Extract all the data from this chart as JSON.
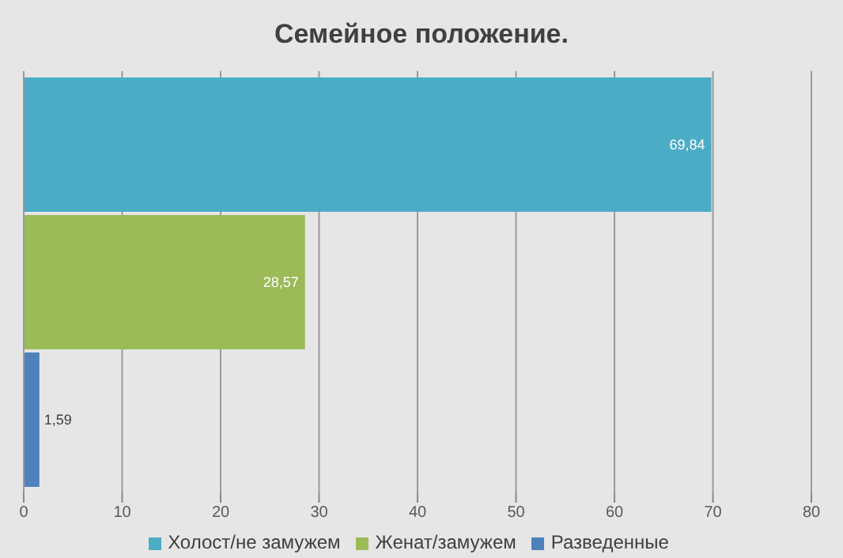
{
  "chart_data": {
    "type": "bar",
    "orientation": "horizontal",
    "title": "Семейное положение.",
    "categories": [
      null
    ],
    "series": [
      {
        "name": "Холост/не замужем",
        "color": "#4bacc6",
        "values": [
          69.84
        ],
        "value_labels": [
          "69,84"
        ]
      },
      {
        "name": "Женат/замужем",
        "color": "#9bbb59",
        "values": [
          28.57
        ],
        "value_labels": [
          "28,57"
        ]
      },
      {
        "name": "Разведенные",
        "color": "#4f81bd",
        "values": [
          1.59
        ],
        "value_labels": [
          "1,59"
        ]
      }
    ],
    "xlim": [
      0,
      80
    ],
    "xticks": [
      0,
      10,
      20,
      30,
      40,
      50,
      60,
      70,
      80
    ],
    "grid": "x",
    "legend": "bottom"
  }
}
